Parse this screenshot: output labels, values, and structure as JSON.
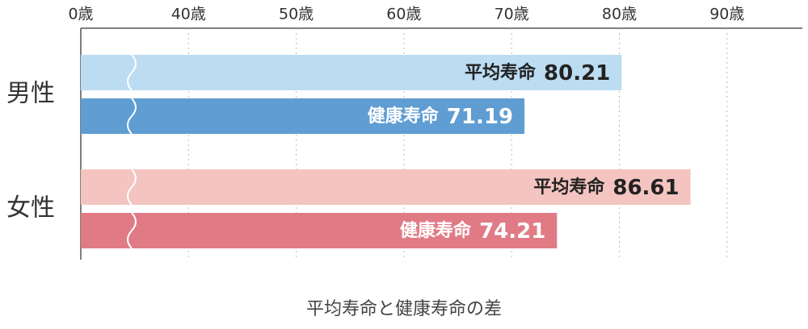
{
  "chart_data": {
    "type": "bar",
    "orientation": "horizontal",
    "title": "平均寿命と健康寿命の差",
    "categories": [
      "男性",
      "女性"
    ],
    "series": [
      {
        "name": "平均寿命",
        "colors": [
          "#bcdcf2",
          "#f4c4c0"
        ],
        "label_color": "#222222",
        "values": [
          80.21,
          86.61
        ]
      },
      {
        "name": "健康寿命",
        "colors": [
          "#5f9dd2",
          "#e07b86"
        ],
        "label_color": "#ffffff",
        "values": [
          71.19,
          74.21
        ]
      }
    ],
    "xlim": [
      0,
      97
    ],
    "xticks": [
      {
        "value": 0,
        "label": "0歳"
      },
      {
        "value": 40,
        "label": "40歳"
      },
      {
        "value": 50,
        "label": "50歳"
      },
      {
        "value": 60,
        "label": "60歳"
      },
      {
        "value": 70,
        "label": "70歳"
      },
      {
        "value": 80,
        "label": "80歳"
      },
      {
        "value": 90,
        "label": "90歳"
      }
    ],
    "axis_break": true,
    "grid": true
  }
}
